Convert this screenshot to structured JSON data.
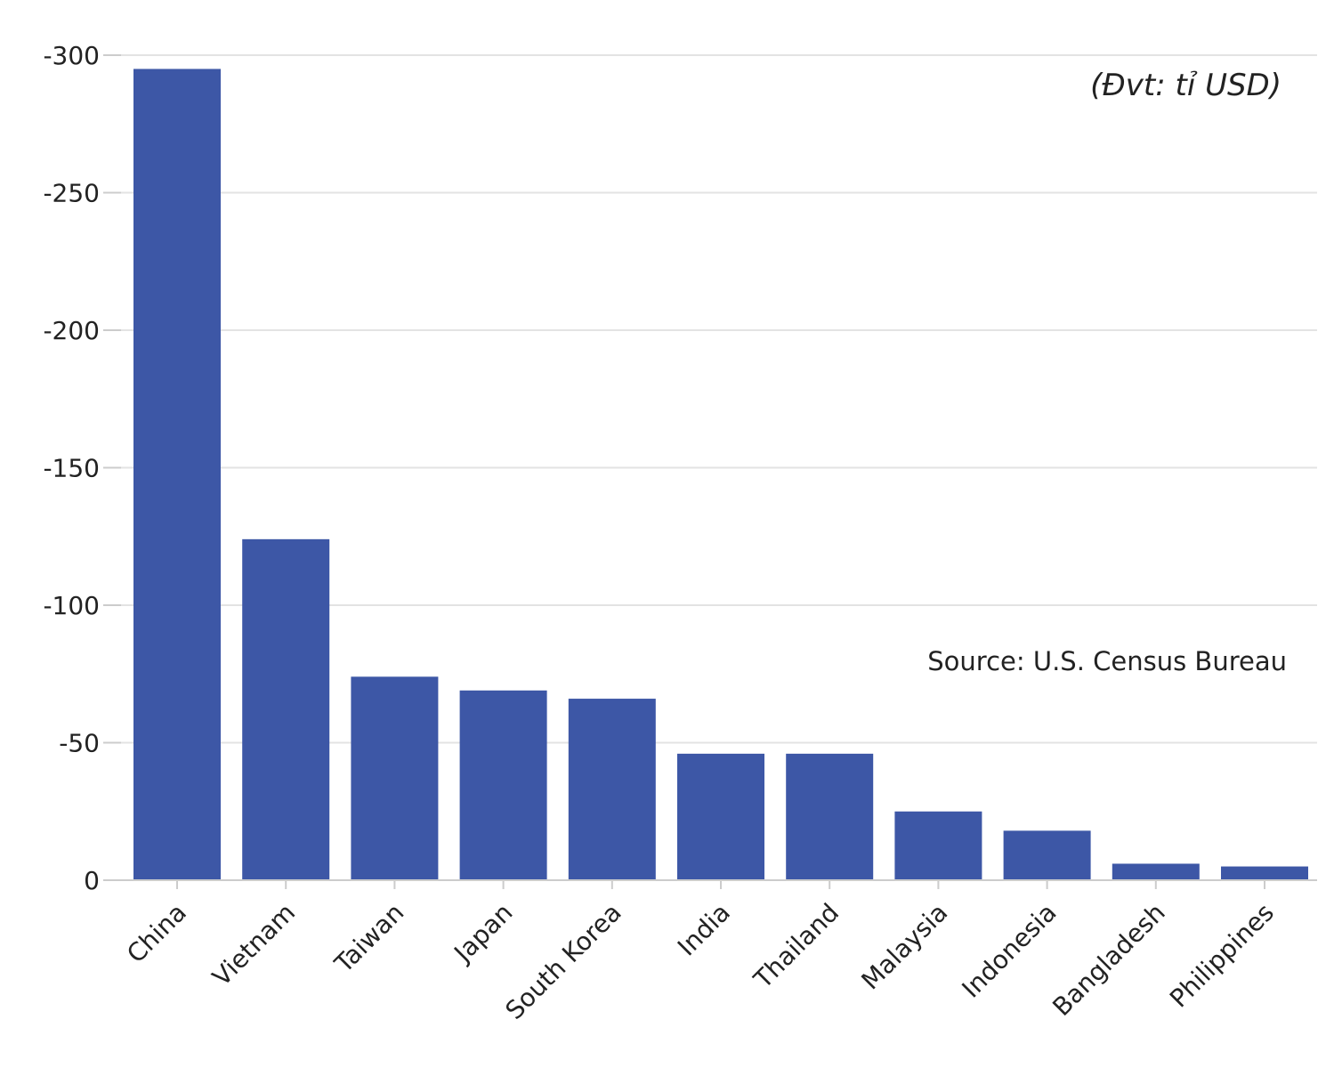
{
  "chart_data": {
    "type": "bar",
    "categories": [
      "China",
      "Vietnam",
      "Taiwan",
      "Japan",
      "South Korea",
      "India",
      "Thailand",
      "Malaysia",
      "Indonesia",
      "Bangladesh",
      "Philippines"
    ],
    "values": [
      -295,
      -124,
      -74,
      -69,
      -66,
      -46,
      -46,
      -25,
      -18,
      -6,
      -5
    ],
    "yticks": [
      0,
      -50,
      -100,
      -150,
      -200,
      -250,
      -300
    ],
    "ylim": [
      0,
      -300
    ],
    "y_axis_reversed": true,
    "grid": true,
    "bar_color": "#3d57a6",
    "unit_note": "(Đvt: tỉ USD)",
    "source": "Source: U.S. Census Bureau"
  }
}
